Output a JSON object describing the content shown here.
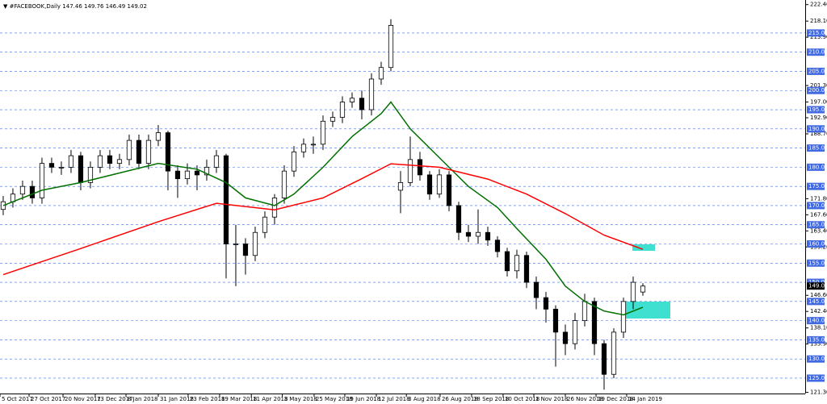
{
  "chart_data": {
    "type": "candlestick",
    "title": "▼ #FACEBOOK,Daily  147.46 149.76 146.49 149.02",
    "color": "#000000",
    "open": [
      169,
      171,
      173,
      175,
      172,
      181,
      180,
      180,
      183,
      176,
      180,
      183,
      181,
      182,
      187,
      181,
      187,
      189,
      179,
      177,
      179,
      178,
      180,
      183,
      160,
      160,
      157,
      163,
      167,
      172,
      179,
      184,
      186,
      186,
      192,
      193,
      197,
      198,
      195,
      203,
      206,
      174,
      176,
      182,
      178,
      173,
      178,
      170,
      163,
      162,
      163,
      161,
      158,
      153,
      157,
      150,
      146,
      143,
      137,
      134,
      140,
      145,
      134,
      126,
      137,
      145,
      147.46
    ],
    "high": [
      172.5,
      174.5,
      176.5,
      176.5,
      182.5,
      182.5,
      181.5,
      184.5,
      184,
      181.5,
      184.5,
      184.5,
      183.5,
      188.5,
      188.5,
      188.5,
      191,
      189.5,
      180.5,
      181,
      180.5,
      182,
      184.5,
      183.5,
      165,
      161.5,
      164.5,
      168.5,
      173,
      180.5,
      185.5,
      187.5,
      188,
      193.5,
      194.5,
      198.5,
      199.5,
      200,
      204.5,
      207.5,
      218.6,
      179,
      188,
      184,
      179,
      179.5,
      179,
      171,
      165,
      169,
      164.5,
      162,
      159,
      158.5,
      158,
      151.5,
      147.5,
      144,
      139,
      142,
      147,
      146,
      135,
      138,
      146,
      151.5,
      149.76
    ],
    "low": [
      167.5,
      169.5,
      171.5,
      170.5,
      170.5,
      178.5,
      178,
      178.5,
      174,
      174.5,
      178.5,
      179.5,
      179.5,
      180.5,
      179.5,
      179.5,
      185.5,
      174,
      172,
      175.5,
      174,
      176.5,
      178.5,
      151,
      149,
      152,
      155.5,
      161.5,
      165,
      170.5,
      177.5,
      182.5,
      183.5,
      184.5,
      190.5,
      191.5,
      195.5,
      192.5,
      193.5,
      201.5,
      205,
      168,
      175,
      176.5,
      171.5,
      172,
      168.5,
      161,
      160.5,
      160,
      159.5,
      156.5,
      151.5,
      151,
      148.5,
      143,
      139.5,
      128,
      131,
      132.5,
      138.5,
      131,
      122,
      125,
      135.5,
      143,
      146.49
    ],
    "close": [
      171,
      173,
      175,
      172,
      181,
      180,
      180,
      183,
      176,
      180,
      183,
      181,
      182,
      187,
      181,
      187,
      189,
      179,
      177,
      179,
      178,
      180,
      183,
      160,
      160,
      157,
      163,
      167,
      172,
      179,
      184,
      186,
      186,
      192,
      193,
      197,
      198,
      195,
      203,
      206,
      217,
      176,
      182,
      178,
      173,
      178,
      170,
      163,
      162,
      163,
      161,
      158,
      153,
      157,
      150,
      146,
      143,
      137,
      134,
      140,
      145,
      134,
      126,
      137,
      145,
      150,
      149.02
    ],
    "lines": [
      {
        "color": "#007000",
        "x": [
          0,
          4,
          8,
          12,
          16,
          20,
          23,
          25,
          28,
          30,
          33,
          36,
          39,
          40,
          42,
          45,
          48,
          51,
          53,
          56,
          58,
          60,
          62,
          64,
          66
        ],
        "values": [
          170,
          174,
          176,
          178.5,
          181,
          179.5,
          176,
          172,
          170,
          173,
          180,
          188,
          194,
          197,
          190,
          182.5,
          175,
          169.5,
          164,
          156,
          149,
          145,
          142.5,
          141.5,
          143.5
        ]
      },
      {
        "color": "#ff0000",
        "x": [
          0,
          8,
          16,
          22,
          28,
          33,
          37,
          40,
          45,
          50,
          54,
          58,
          62,
          66
        ],
        "values": [
          152,
          158.8,
          165.8,
          170.6,
          168.9,
          172,
          177,
          180.9,
          180,
          176.9,
          173,
          167.9,
          162.3,
          158.6
        ]
      }
    ],
    "xlim": [
      -0.33,
      82.75
    ],
    "xticks": [
      {
        "value": -0.33,
        "label": "5 Oct 2017"
      },
      {
        "value": 2.67,
        "label": "27 Oct 2017"
      },
      {
        "value": 6.17,
        "label": "20 Nov 2017"
      },
      {
        "value": 9.5,
        "label": "13 Dec 2017"
      },
      {
        "value": 12.67,
        "label": "8 Jan 2018"
      },
      {
        "value": 16,
        "label": "31 Jan 2018"
      },
      {
        "value": 19.08,
        "label": "23 Feb 2018"
      },
      {
        "value": 22.33,
        "label": "19 Mar 2018"
      },
      {
        "value": 25.6,
        "label": "11 Apr 2018"
      },
      {
        "value": 28.8,
        "label": "3 May 2018"
      },
      {
        "value": 32.08,
        "label": "25 May 2018"
      },
      {
        "value": 35.25,
        "label": "19 Jun 2018"
      },
      {
        "value": 38.5,
        "label": "12 Jul 2018"
      },
      {
        "value": 41.6,
        "label": "3 Aug 2018"
      },
      {
        "value": 45.08,
        "label": "26 Aug 2018"
      },
      {
        "value": 48.33,
        "label": "18 Sep 2018"
      },
      {
        "value": 51.58,
        "label": "10 Oct 2018"
      },
      {
        "value": 54.75,
        "label": "1 Nov 2018"
      },
      {
        "value": 58,
        "label": "26 Nov 2018"
      },
      {
        "value": 61.17,
        "label": "19 Dec 2018"
      },
      {
        "value": 64.33,
        "label": "14 Jan 2019"
      }
    ],
    "ylim": [
      121,
      223.6
    ],
    "yticks": [
      {
        "value": 222.4,
        "label": "222.40"
      },
      {
        "value": 218.1,
        "label": "218.10"
      },
      {
        "value": 213.9,
        "label": "213.90"
      },
      {
        "value": 201.3,
        "label": "201.30"
      },
      {
        "value": 197,
        "label": "197.00"
      },
      {
        "value": 192.9,
        "label": "192.90"
      },
      {
        "value": 188.7,
        "label": "188.70"
      },
      {
        "value": 171.8,
        "label": "171.80"
      },
      {
        "value": 167.6,
        "label": "167.60"
      },
      {
        "value": 163.4,
        "label": "163.40"
      },
      {
        "value": 159.2,
        "label": "159.20"
      },
      {
        "value": 146.6,
        "label": "146.60"
      },
      {
        "value": 142.4,
        "label": "142.40"
      },
      {
        "value": 138.1,
        "label": "138.10"
      },
      {
        "value": 133.9,
        "label": "133.90"
      },
      {
        "value": 121.3,
        "label": "121.30"
      }
    ],
    "levels": [
      {
        "value": 215,
        "label": "215.00"
      },
      {
        "value": 210,
        "label": "210.00"
      },
      {
        "value": 205,
        "label": "205.00"
      },
      {
        "value": 200,
        "label": "200.00"
      },
      {
        "value": 195,
        "label": "195.00"
      },
      {
        "value": 190,
        "label": "190.00"
      },
      {
        "value": 185,
        "label": "185.00"
      },
      {
        "value": 180,
        "label": "180.00"
      },
      {
        "value": 175,
        "label": "175.00"
      },
      {
        "value": 170,
        "label": "170.00"
      },
      {
        "value": 165,
        "label": "165.00"
      },
      {
        "value": 160,
        "label": "160.00"
      },
      {
        "value": 155,
        "label": "155.00"
      },
      {
        "value": 150,
        "label": "150.00"
      },
      {
        "value": 145,
        "label": "145.00"
      },
      {
        "value": 140,
        "label": "140.00"
      },
      {
        "value": 135,
        "label": "135.00"
      },
      {
        "value": 130,
        "label": "130.00"
      },
      {
        "value": 125,
        "label": "125.00"
      }
    ],
    "level_color": "#4169e1",
    "current_price": {
      "value": 149.02,
      "label": "149.02"
    }
  }
}
